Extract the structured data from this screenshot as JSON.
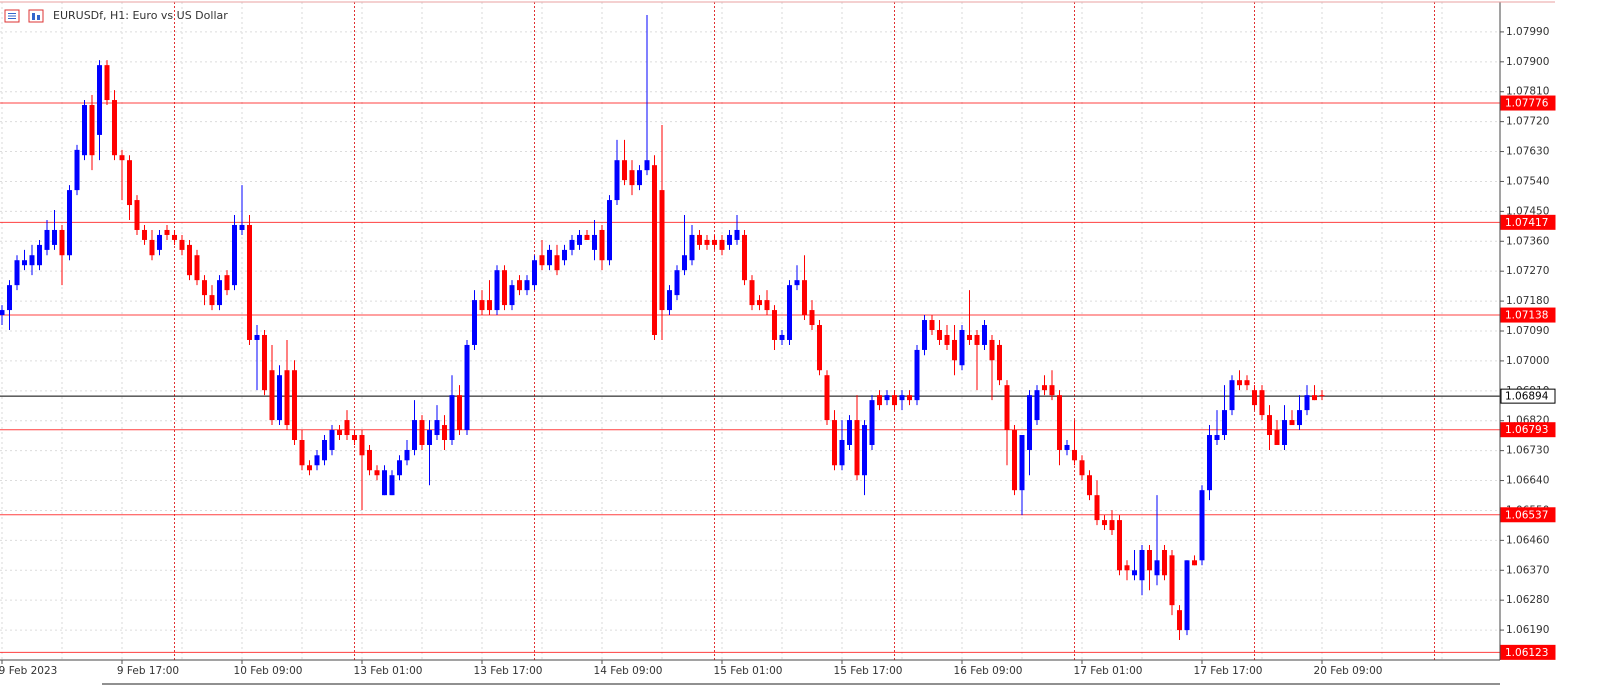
{
  "chart_data": {
    "type": "candlestick",
    "title": "EURUSDf, H1:  Euro vs US Dollar",
    "up_color": "#0000ff",
    "down_color": "#ff0000",
    "level_color": "#ff0000",
    "current_color": "#000000",
    "grid": true,
    "ylim": [
      1.061,
      1.0808
    ],
    "yticks": [
      {
        "value": 1.0799,
        "label": "1.07990"
      },
      {
        "value": 1.079,
        "label": "1.07900"
      },
      {
        "value": 1.0781,
        "label": "1.07810"
      },
      {
        "value": 1.0772,
        "label": "1.07720"
      },
      {
        "value": 1.0763,
        "label": "1.07630"
      },
      {
        "value": 1.0754,
        "label": "1.07540"
      },
      {
        "value": 1.0745,
        "label": "1.07450"
      },
      {
        "value": 1.0736,
        "label": "1.07360"
      },
      {
        "value": 1.0727,
        "label": "1.07270"
      },
      {
        "value": 1.0718,
        "label": "1.07180"
      },
      {
        "value": 1.0709,
        "label": "1.07090"
      },
      {
        "value": 1.07,
        "label": "1.07000"
      },
      {
        "value": 1.0691,
        "label": "1.06910"
      },
      {
        "value": 1.0682,
        "label": "1.06820"
      },
      {
        "value": 1.0673,
        "label": "1.06730"
      },
      {
        "value": 1.0664,
        "label": "1.06640"
      },
      {
        "value": 1.0655,
        "label": "1.06550"
      },
      {
        "value": 1.0646,
        "label": "1.06460"
      },
      {
        "value": 1.0637,
        "label": "1.06370"
      },
      {
        "value": 1.0628,
        "label": "1.06280"
      },
      {
        "value": 1.0619,
        "label": "1.06190"
      }
    ],
    "levels": [
      1.07776,
      1.07417,
      1.07138,
      1.06793,
      1.06537,
      1.06123
    ],
    "current_price": 1.06894,
    "categories": [
      "9 Feb 2023",
      null,
      null,
      null,
      null,
      null,
      null,
      null,
      null,
      null,
      null,
      null,
      null,
      null,
      null,
      null,
      "9 Feb 17:00",
      null,
      null,
      null,
      null,
      null,
      null,
      null,
      null,
      null,
      null,
      null,
      null,
      null,
      null,
      null,
      "10 Feb 09:00",
      null,
      null,
      null,
      null,
      null,
      null,
      null,
      null,
      null,
      null,
      null,
      null,
      null,
      null,
      null,
      "13 Feb 01:00",
      null,
      null,
      null,
      null,
      null,
      null,
      null,
      null,
      null,
      null,
      null,
      null,
      null,
      null,
      null,
      "13 Feb 17:00",
      null,
      null,
      null,
      null,
      null,
      null,
      null,
      null,
      null,
      null,
      null,
      null,
      null,
      null,
      null,
      "14 Feb 09:00",
      null,
      null,
      null,
      null,
      null,
      null,
      null,
      null,
      null,
      null,
      null,
      null,
      null,
      null,
      null,
      "15 Feb 01:00",
      null,
      null,
      null,
      null,
      null,
      null,
      null,
      null,
      null,
      null,
      null,
      null,
      null,
      null,
      null,
      "15 Feb 17:00",
      null,
      null,
      null,
      null,
      null,
      null,
      null,
      null,
      null,
      null,
      null,
      null,
      null,
      null,
      null,
      "16 Feb 09:00",
      null,
      null,
      null,
      null,
      null,
      null,
      null,
      null,
      null,
      null,
      null,
      null,
      null,
      null,
      null,
      "17 Feb 01:00",
      null,
      null,
      null,
      null,
      null,
      null,
      null,
      null,
      null,
      null,
      null,
      null,
      null,
      null,
      null,
      "17 Feb 17:00",
      null,
      null,
      null,
      null,
      null,
      null,
      null,
      null,
      null,
      null,
      null,
      null,
      null,
      null,
      null,
      "20 Feb 09:00"
    ],
    "candles": [
      [
        1.07138,
        1.07168,
        1.07108,
        1.07153
      ],
      [
        1.07153,
        1.07243,
        1.07093,
        1.07228
      ],
      [
        1.07228,
        1.07318,
        1.07213,
        1.07303
      ],
      [
        1.07288,
        1.07334,
        1.07273,
        1.07303
      ],
      [
        1.07288,
        1.07349,
        1.07258,
        1.07318
      ],
      [
        1.07288,
        1.07364,
        1.07273,
        1.07349
      ],
      [
        1.07334,
        1.07424,
        1.07318,
        1.07394
      ],
      [
        1.07349,
        1.07454,
        1.07334,
        1.07394
      ],
      [
        1.07394,
        1.07409,
        1.07228,
        1.07318
      ],
      [
        1.07318,
        1.07529,
        1.07303,
        1.07514
      ],
      [
        1.07514,
        1.0765,
        1.07499,
        1.07635
      ],
      [
        1.07619,
        1.07785,
        1.07604,
        1.0777
      ],
      [
        1.0777,
        1.078,
        1.07574,
        1.07619
      ],
      [
        1.0768,
        1.07905,
        1.07604,
        1.0789
      ],
      [
        1.0789,
        1.07905,
        1.0777,
        1.07785
      ],
      [
        1.07785,
        1.07815,
        1.07604,
        1.07619
      ],
      [
        1.07619,
        1.07635,
        1.07484,
        1.07604
      ],
      [
        1.07604,
        1.07619,
        1.07424,
        1.07469
      ],
      [
        1.07484,
        1.07499,
        1.07379,
        1.07394
      ],
      [
        1.07394,
        1.07409,
        1.07349,
        1.07364
      ],
      [
        1.07364,
        1.07394,
        1.07303,
        1.07318
      ],
      [
        1.07334,
        1.07394,
        1.07318,
        1.07379
      ],
      [
        1.07394,
        1.07409,
        1.07364,
        1.07379
      ],
      [
        1.07379,
        1.07394,
        1.07349,
        1.07364
      ],
      [
        1.07364,
        1.07379,
        1.07318,
        1.07334
      ],
      [
        1.07349,
        1.07364,
        1.07243,
        1.07258
      ],
      [
        1.07318,
        1.07334,
        1.07228,
        1.07243
      ],
      [
        1.07243,
        1.07258,
        1.07168,
        1.07198
      ],
      [
        1.07198,
        1.07228,
        1.07153,
        1.07168
      ],
      [
        1.07168,
        1.07258,
        1.07153,
        1.07243
      ],
      [
        1.07258,
        1.07273,
        1.07198,
        1.07213
      ],
      [
        1.07228,
        1.07439,
        1.07213,
        1.07409
      ],
      [
        1.07394,
        1.07529,
        1.07379,
        1.07409
      ],
      [
        1.07409,
        1.07439,
        1.07048,
        1.07063
      ],
      [
        1.07063,
        1.07108,
        1.06912,
        1.07078
      ],
      [
        1.07078,
        1.07093,
        1.06897,
        1.06912
      ],
      [
        1.06972,
        1.07048,
        1.06807,
        1.06822
      ],
      [
        1.06822,
        1.06987,
        1.06807,
        1.06957
      ],
      [
        1.06972,
        1.07063,
        1.06792,
        1.06807
      ],
      [
        1.06972,
        1.07002,
        1.06747,
        1.06762
      ],
      [
        1.06762,
        1.06792,
        1.06671,
        1.06686
      ],
      [
        1.06686,
        1.06701,
        1.06656,
        1.06671
      ],
      [
        1.06686,
        1.06732,
        1.06671,
        1.06716
      ],
      [
        1.06701,
        1.06777,
        1.06686,
        1.06762
      ],
      [
        1.06732,
        1.06807,
        1.06716,
        1.06792
      ],
      [
        1.06792,
        1.06807,
        1.06762,
        1.06777
      ],
      [
        1.06822,
        1.06852,
        1.06762,
        1.06777
      ],
      [
        1.06777,
        1.06792,
        1.06747,
        1.06762
      ],
      [
        1.06777,
        1.06792,
        1.06551,
        1.06716
      ],
      [
        1.06732,
        1.06747,
        1.06656,
        1.06671
      ],
      [
        1.06671,
        1.06686,
        1.06641,
        1.06656
      ],
      [
        1.06596,
        1.06686,
        1.06596,
        1.06671
      ],
      [
        1.06596,
        1.06671,
        1.06596,
        1.06656
      ],
      [
        1.06656,
        1.06716,
        1.06641,
        1.06701
      ],
      [
        1.06701,
        1.06762,
        1.06686,
        1.06732
      ],
      [
        1.06732,
        1.06882,
        1.06716,
        1.06822
      ],
      [
        1.06822,
        1.06837,
        1.06732,
        1.06747
      ],
      [
        1.06747,
        1.06822,
        1.06626,
        1.06792
      ],
      [
        1.06777,
        1.06867,
        1.06762,
        1.06822
      ],
      [
        1.06807,
        1.06837,
        1.06732,
        1.06762
      ],
      [
        1.06762,
        1.06957,
        1.06747,
        1.06897
      ],
      [
        1.06897,
        1.06927,
        1.06777,
        1.06792
      ],
      [
        1.06792,
        1.07063,
        1.06777,
        1.07048
      ],
      [
        1.07048,
        1.07213,
        1.07033,
        1.07183
      ],
      [
        1.07183,
        1.07213,
        1.07138,
        1.07153
      ],
      [
        1.07183,
        1.07243,
        1.07138,
        1.07153
      ],
      [
        1.07153,
        1.07288,
        1.07138,
        1.07273
      ],
      [
        1.07273,
        1.07288,
        1.07153,
        1.07168
      ],
      [
        1.07168,
        1.07243,
        1.07153,
        1.07228
      ],
      [
        1.07243,
        1.07258,
        1.07198,
        1.07213
      ],
      [
        1.07213,
        1.07258,
        1.07198,
        1.07243
      ],
      [
        1.07228,
        1.07318,
        1.07213,
        1.07303
      ],
      [
        1.07318,
        1.07364,
        1.07273,
        1.07288
      ],
      [
        1.07288,
        1.07349,
        1.07273,
        1.07334
      ],
      [
        1.07318,
        1.07349,
        1.07258,
        1.07273
      ],
      [
        1.07303,
        1.07349,
        1.07288,
        1.07334
      ],
      [
        1.07334,
        1.07379,
        1.07318,
        1.07364
      ],
      [
        1.07349,
        1.07394,
        1.07334,
        1.07379
      ],
      [
        1.07379,
        1.07394,
        1.07364,
        1.07364
      ],
      [
        1.07334,
        1.07424,
        1.07303,
        1.07379
      ],
      [
        1.07394,
        1.07409,
        1.07273,
        1.07303
      ],
      [
        1.07303,
        1.07499,
        1.07288,
        1.07484
      ],
      [
        1.07484,
        1.07665,
        1.07469,
        1.07604
      ],
      [
        1.07604,
        1.07665,
        1.07529,
        1.07544
      ],
      [
        1.07574,
        1.07604,
        1.07499,
        1.07529
      ],
      [
        1.07529,
        1.07589,
        1.07514,
        1.07574
      ],
      [
        1.07574,
        1.08041,
        1.07559,
        1.07604
      ],
      [
        1.07589,
        1.07619,
        1.07063,
        1.07078
      ],
      [
        1.07514,
        1.0771,
        1.07063,
        1.07153
      ],
      [
        1.07153,
        1.07228,
        1.07138,
        1.07213
      ],
      [
        1.07198,
        1.07288,
        1.07183,
        1.07273
      ],
      [
        1.07273,
        1.07439,
        1.07258,
        1.07318
      ],
      [
        1.07303,
        1.07409,
        1.07288,
        1.07379
      ],
      [
        1.07379,
        1.07394,
        1.07334,
        1.07349
      ],
      [
        1.07364,
        1.07379,
        1.07334,
        1.07349
      ],
      [
        1.07364,
        1.07379,
        1.07334,
        1.07349
      ],
      [
        1.07364,
        1.07379,
        1.07318,
        1.07334
      ],
      [
        1.07349,
        1.07394,
        1.07334,
        1.07379
      ],
      [
        1.07364,
        1.07439,
        1.07349,
        1.07394
      ],
      [
        1.07379,
        1.07394,
        1.07228,
        1.07243
      ],
      [
        1.07243,
        1.07258,
        1.07153,
        1.07168
      ],
      [
        1.07183,
        1.07198,
        1.07153,
        1.07168
      ],
      [
        1.07183,
        1.07213,
        1.07138,
        1.07153
      ],
      [
        1.07153,
        1.07168,
        1.07033,
        1.07063
      ],
      [
        1.07063,
        1.07093,
        1.07048,
        1.07078
      ],
      [
        1.07063,
        1.07243,
        1.07048,
        1.07228
      ],
      [
        1.07228,
        1.07288,
        1.07213,
        1.07243
      ],
      [
        1.07243,
        1.07318,
        1.07123,
        1.07138
      ],
      [
        1.07153,
        1.07183,
        1.07093,
        1.07108
      ],
      [
        1.07108,
        1.07123,
        1.06957,
        1.06972
      ],
      [
        1.06957,
        1.06972,
        1.06807,
        1.06822
      ],
      [
        1.06822,
        1.06852,
        1.06671,
        1.06686
      ],
      [
        1.06686,
        1.06822,
        1.06671,
        1.06762
      ],
      [
        1.06747,
        1.06837,
        1.06732,
        1.06822
      ],
      [
        1.06822,
        1.06897,
        1.06641,
        1.06656
      ],
      [
        1.06656,
        1.06822,
        1.06596,
        1.06807
      ],
      [
        1.06747,
        1.06897,
        1.06732,
        1.06882
      ],
      [
        1.06897,
        1.06912,
        1.06852,
        1.06867
      ],
      [
        1.06882,
        1.06912,
        1.06867,
        1.06897
      ],
      [
        1.06897,
        1.06912,
        1.06852,
        1.06867
      ],
      [
        1.06882,
        1.06912,
        1.06852,
        1.06897
      ],
      [
        1.06897,
        1.06912,
        1.06867,
        1.06882
      ],
      [
        1.06882,
        1.07048,
        1.06867,
        1.07033
      ],
      [
        1.07033,
        1.07138,
        1.07017,
        1.07123
      ],
      [
        1.07123,
        1.07138,
        1.07078,
        1.07093
      ],
      [
        1.07093,
        1.07123,
        1.07048,
        1.07063
      ],
      [
        1.07078,
        1.07108,
        1.07033,
        1.07048
      ],
      [
        1.07063,
        1.07108,
        1.06957,
        1.07002
      ],
      [
        1.06987,
        1.07108,
        1.06972,
        1.07093
      ],
      [
        1.07078,
        1.07213,
        1.07048,
        1.07063
      ],
      [
        1.07078,
        1.07093,
        1.06912,
        1.07048
      ],
      [
        1.07048,
        1.07123,
        1.07033,
        1.07108
      ],
      [
        1.07063,
        1.07078,
        1.06882,
        1.07002
      ],
      [
        1.07048,
        1.07063,
        1.06927,
        1.06942
      ],
      [
        1.06927,
        1.06942,
        1.06686,
        1.06792
      ],
      [
        1.06792,
        1.06807,
        1.06596,
        1.06611
      ],
      [
        1.06611,
        1.06777,
        1.06536,
        1.06777
      ],
      [
        1.06732,
        1.06912,
        1.06656,
        1.06897
      ],
      [
        1.06822,
        1.06927,
        1.06807,
        1.06912
      ],
      [
        1.06927,
        1.06957,
        1.06897,
        1.06912
      ],
      [
        1.06927,
        1.06972,
        1.06882,
        1.06897
      ],
      [
        1.06897,
        1.06912,
        1.06686,
        1.06732
      ],
      [
        1.06732,
        1.06762,
        1.06716,
        1.06747
      ],
      [
        1.06732,
        1.06822,
        1.06686,
        1.06701
      ],
      [
        1.06701,
        1.06716,
        1.06641,
        1.06656
      ],
      [
        1.06656,
        1.06671,
        1.06581,
        1.06596
      ],
      [
        1.06596,
        1.06641,
        1.06506,
        1.06521
      ],
      [
        1.06521,
        1.06536,
        1.06491,
        1.06506
      ],
      [
        1.06521,
        1.06551,
        1.06476,
        1.06491
      ],
      [
        1.06521,
        1.06536,
        1.06355,
        1.0637
      ],
      [
        1.06385,
        1.064,
        1.0634,
        1.0637
      ],
      [
        1.06355,
        1.06431,
        1.0634,
        1.0637
      ],
      [
        1.0634,
        1.06446,
        1.06295,
        1.06431
      ],
      [
        1.06431,
        1.06446,
        1.0631,
        1.0637
      ],
      [
        1.06355,
        1.06596,
        1.06325,
        1.064
      ],
      [
        1.06431,
        1.06446,
        1.0634,
        1.06355
      ],
      [
        1.06415,
        1.06431,
        1.06235,
        1.06265
      ],
      [
        1.0625,
        1.06265,
        1.0616,
        1.0619
      ],
      [
        1.0619,
        1.064,
        1.06175,
        1.064
      ],
      [
        1.064,
        1.06415,
        1.06385,
        1.06385
      ],
      [
        1.064,
        1.06626,
        1.06385,
        1.06611
      ],
      [
        1.06611,
        1.06807,
        1.06581,
        1.06777
      ],
      [
        1.06762,
        1.06852,
        1.06747,
        1.06777
      ],
      [
        1.06777,
        1.06927,
        1.06762,
        1.06852
      ],
      [
        1.06852,
        1.06957,
        1.06837,
        1.06942
      ],
      [
        1.06942,
        1.06972,
        1.06912,
        1.06927
      ],
      [
        1.06942,
        1.06957,
        1.06912,
        1.06927
      ],
      [
        1.06912,
        1.06927,
        1.06852,
        1.06867
      ],
      [
        1.06912,
        1.06927,
        1.06822,
        1.06837
      ],
      [
        1.06837,
        1.06867,
        1.06732,
        1.06777
      ],
      [
        1.06792,
        1.06822,
        1.06747,
        1.06747
      ],
      [
        1.06747,
        1.06867,
        1.06732,
        1.06822
      ],
      [
        1.06822,
        1.06852,
        1.06807,
        1.06807
      ],
      [
        1.06807,
        1.06897,
        1.06792,
        1.06852
      ],
      [
        1.06852,
        1.06927,
        1.06837,
        1.06897
      ],
      [
        1.06897,
        1.06927,
        1.06882,
        1.06882
      ],
      [
        1.06897,
        1.06912,
        1.06882,
        1.06894
      ]
    ]
  }
}
